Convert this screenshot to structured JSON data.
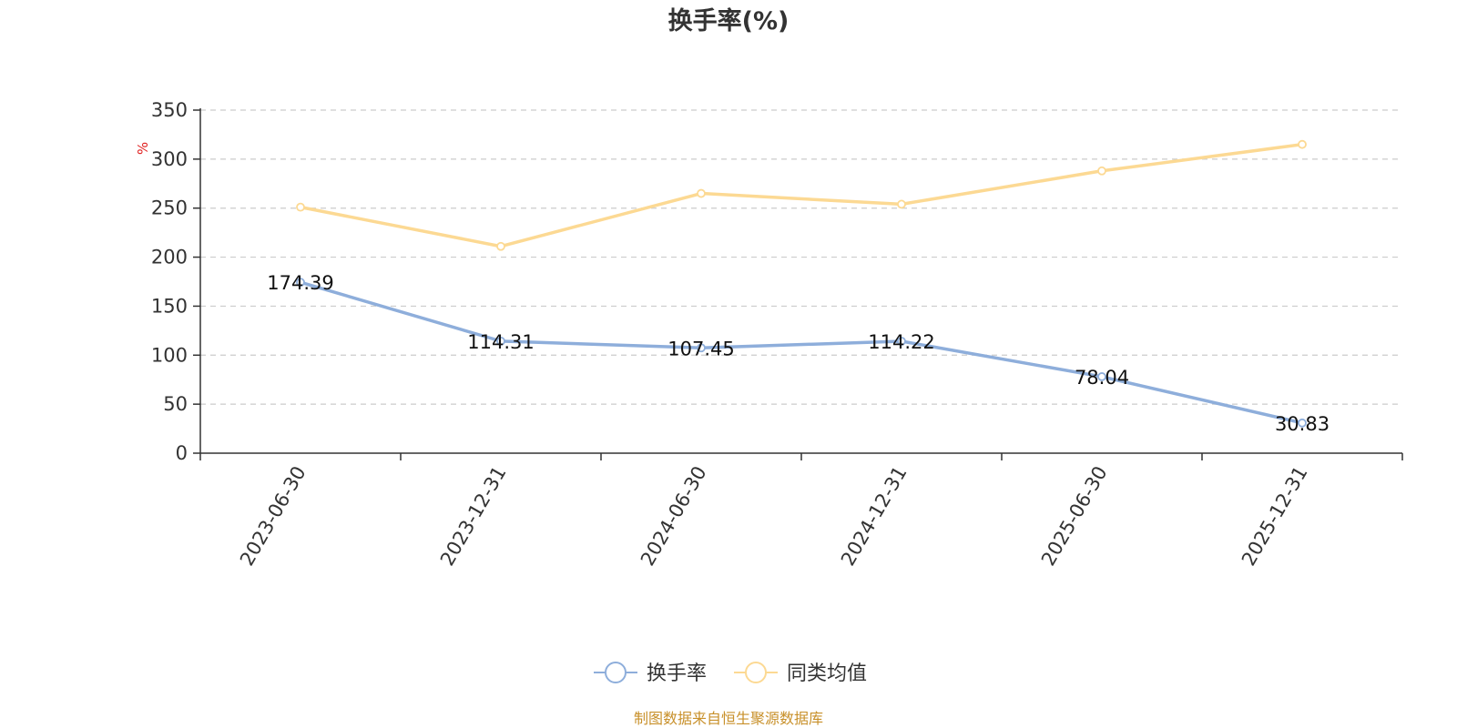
{
  "colors": {
    "series_primary": "#8eaedb",
    "series_average": "#fcd993",
    "source_text": "#c8902a",
    "unit_text": "#e02020",
    "grid": "#cccccc",
    "axis": "#333333"
  },
  "footer": {
    "source": "制图数据来自恒生聚源数据库"
  },
  "chart_data": {
    "type": "line",
    "title": "换手率(%)",
    "ylabel": "%",
    "xlabel": "",
    "categories": [
      "2023-06-30",
      "2023-12-31",
      "2024-06-30",
      "2024-12-31",
      "2025-06-30",
      "2025-12-31"
    ],
    "ylim": [
      0,
      350
    ],
    "yticks": [
      0,
      50,
      100,
      150,
      200,
      250,
      300,
      350
    ],
    "grid": true,
    "legend_position": "bottom",
    "series": [
      {
        "name": "换手率",
        "values": [
          174.39,
          114.31,
          107.45,
          114.22,
          78.04,
          30.83
        ],
        "labels": [
          "174.39",
          "114.31",
          "107.45",
          "114.22",
          "78.04",
          "30.83"
        ],
        "color": "#8eaedb"
      },
      {
        "name": "同类均值",
        "values": [
          251,
          211,
          265,
          254,
          288,
          315
        ],
        "color": "#fcd993"
      }
    ]
  }
}
